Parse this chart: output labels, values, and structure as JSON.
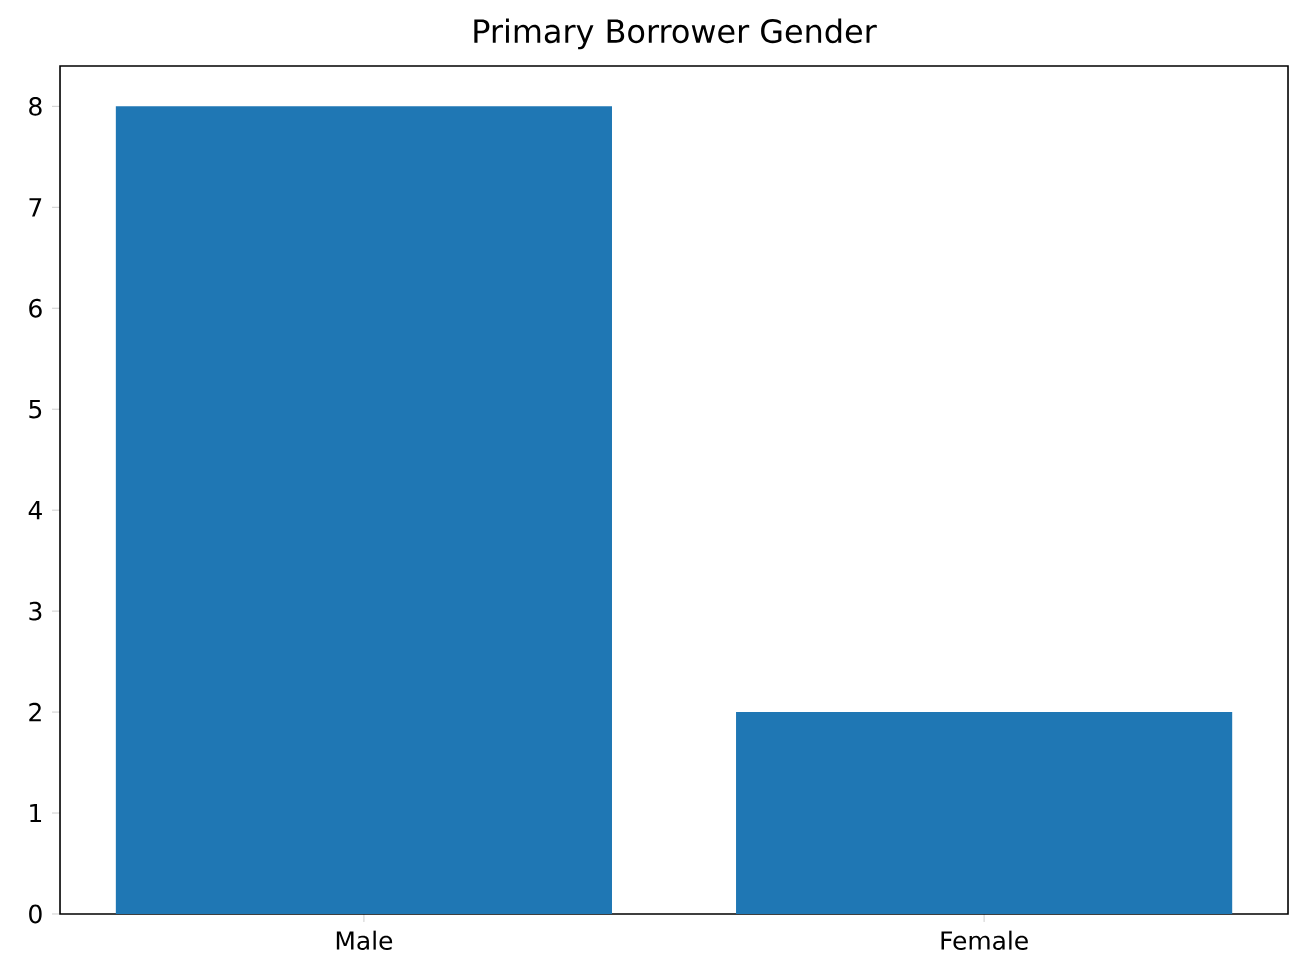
{
  "chart_data": {
    "type": "bar",
    "title": "Primary Borrower Gender",
    "categories": [
      "Male",
      "Female"
    ],
    "values": [
      8,
      2
    ],
    "color": "#1f77b4",
    "ylim": [
      0,
      8.4
    ],
    "yticks": [
      0,
      1,
      2,
      3,
      4,
      5,
      6,
      7,
      8
    ]
  }
}
